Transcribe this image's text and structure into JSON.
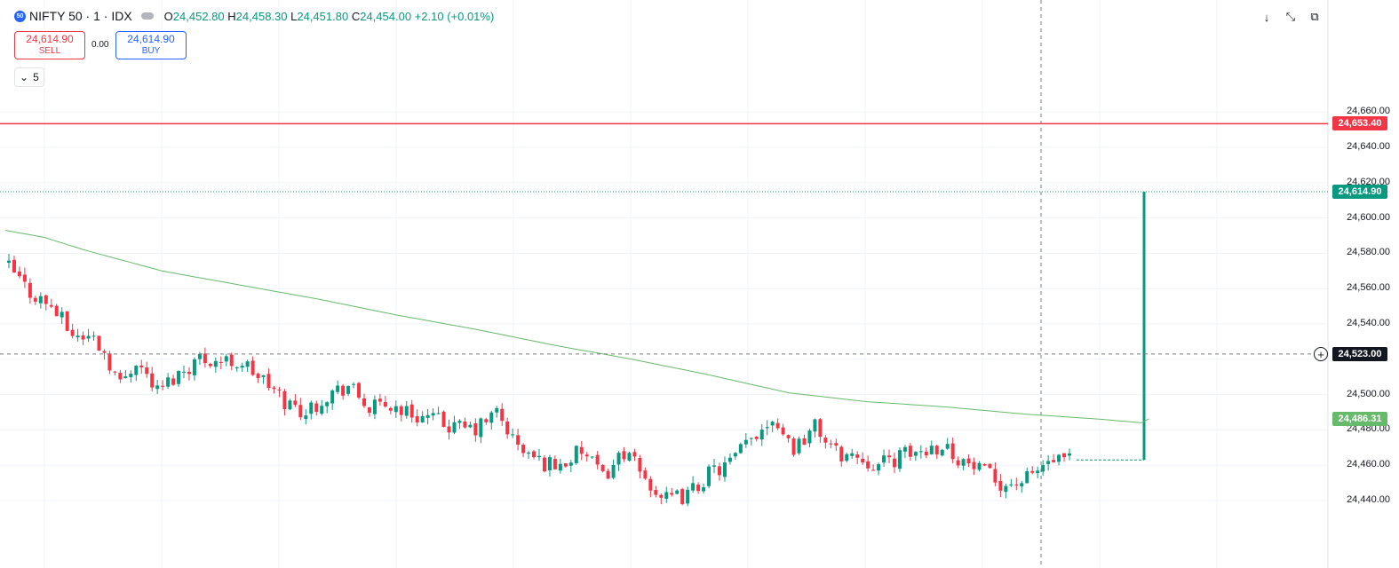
{
  "header": {
    "symbol_icon_text": "50",
    "symbol": "NIFTY 50 · 1 · IDX",
    "open_key": "O",
    "open": "24,452.80",
    "high_key": "H",
    "high": "24,458.30",
    "low_key": "L",
    "low": "24,451.80",
    "close_key": "C",
    "close": "24,454.00",
    "change": "+2.10 (+0.01%)"
  },
  "trade": {
    "sell_price": "24,614.90",
    "sell_label": "SELL",
    "spread": "0.00",
    "buy_price": "24,614.90",
    "buy_label": "BUY"
  },
  "interval_value": "5",
  "toolbar": {
    "down_icon": "↓",
    "expand_icon": "⤡",
    "window_icon": "⧉"
  },
  "price_axis": {
    "ticks": [
      "24,660.00",
      "24,640.00",
      "24,620.00",
      "24,600.00",
      "24,580.00",
      "24,560.00",
      "24,540.00",
      "24,500.00",
      "24,480.00",
      "24,460.00",
      "24,440.00"
    ]
  },
  "tags": {
    "top_line": "24,653.40",
    "last_price": "24,614.90",
    "crosshair": "24,523.00",
    "ma_value": "24,486.31"
  },
  "colors": {
    "up": "#089981",
    "down": "#f23645",
    "ma": "#66bb6a",
    "line_red": "#f23645",
    "last_price_line": "#089981",
    "crosshair": "#131722"
  },
  "chart_data": {
    "type": "candlestick",
    "interval_minutes": 1,
    "ylim": [
      24433,
      24665
    ],
    "y_ticks": [
      24440,
      24460,
      24480,
      24500,
      24540,
      24560,
      24580,
      24600,
      24620,
      24640,
      24660
    ],
    "horizontal_lines": [
      {
        "label": "24,653.40",
        "value": 24653.4,
        "color": "red"
      },
      {
        "label": "24,614.90",
        "value": 24614.9,
        "color": "green-dotted"
      },
      {
        "label": "24,523.00",
        "value": 24523.0,
        "color": "crosshair-dashed"
      }
    ],
    "moving_average": {
      "value_at_last": 24486.31,
      "anchors": [
        [
          0,
          24593
        ],
        [
          5,
          24589
        ],
        [
          10,
          24582
        ],
        [
          20,
          24570
        ],
        [
          30,
          24562
        ],
        [
          40,
          24554
        ],
        [
          50,
          24545
        ],
        [
          60,
          24537
        ],
        [
          70,
          24528
        ],
        [
          80,
          24520
        ],
        [
          90,
          24511
        ],
        [
          100,
          24501
        ],
        [
          110,
          24496
        ],
        [
          120,
          24493
        ],
        [
          130,
          24489
        ],
        [
          140,
          24486
        ],
        [
          145,
          24484
        ],
        [
          146,
          24486.31
        ]
      ]
    },
    "close_path_anchors": [
      [
        0,
        24572
      ],
      [
        4,
        24558
      ],
      [
        8,
        24550
      ],
      [
        12,
        24534
      ],
      [
        16,
        24532
      ],
      [
        18,
        24524
      ],
      [
        21,
        24506
      ],
      [
        24,
        24520
      ],
      [
        28,
        24502
      ],
      [
        32,
        24512
      ],
      [
        36,
        24521
      ],
      [
        40,
        24519
      ],
      [
        44,
        24518
      ],
      [
        48,
        24508
      ],
      [
        52,
        24496
      ],
      [
        56,
        24490
      ],
      [
        60,
        24500
      ],
      [
        64,
        24505
      ],
      [
        68,
        24492
      ],
      [
        72,
        24494
      ],
      [
        76,
        24489
      ],
      [
        80,
        24486
      ],
      [
        84,
        24481
      ],
      [
        88,
        24480
      ],
      [
        92,
        24490
      ],
      [
        96,
        24470
      ],
      [
        100,
        24462
      ],
      [
        104,
        24460
      ],
      [
        108,
        24468
      ],
      [
        112,
        24453
      ],
      [
        116,
        24468
      ],
      [
        120,
        24452
      ],
      [
        124,
        24440
      ],
      [
        128,
        24443
      ],
      [
        132,
        24455
      ],
      [
        136,
        24461
      ],
      [
        140,
        24475
      ],
      [
        144,
        24488
      ],
      [
        148,
        24470
      ],
      [
        152,
        24482
      ],
      [
        156,
        24467
      ],
      [
        160,
        24465
      ],
      [
        164,
        24460
      ],
      [
        168,
        24465
      ],
      [
        172,
        24468
      ],
      [
        176,
        24472
      ],
      [
        180,
        24462
      ],
      [
        184,
        24455
      ],
      [
        188,
        24449
      ],
      [
        192,
        24452
      ],
      [
        196,
        24462
      ]
    ],
    "extreme_bar": {
      "open": 24463,
      "close": 24614.9,
      "high": 24614.9,
      "low": 24463
    }
  }
}
